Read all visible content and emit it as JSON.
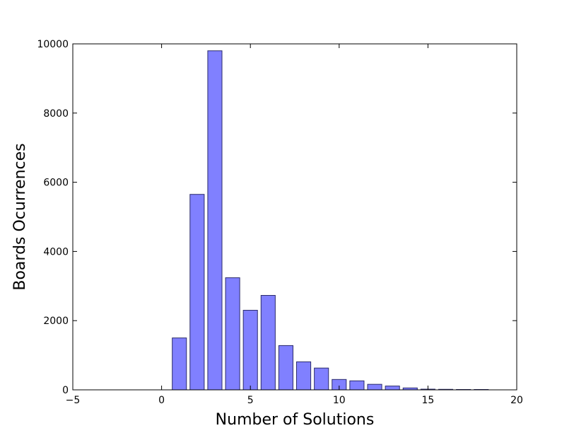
{
  "chart_data": {
    "type": "bar",
    "title": "",
    "xlabel": "Number of Solutions",
    "ylabel": "Boards Ocurrences",
    "xlim": [
      -5,
      20
    ],
    "ylim": [
      0,
      10000
    ],
    "xticks": [
      -5,
      0,
      5,
      10,
      15,
      20
    ],
    "yticks": [
      0,
      2000,
      4000,
      6000,
      8000,
      10000
    ],
    "xtick_labels": [
      "−5",
      "0",
      "5",
      "10",
      "15",
      "20"
    ],
    "ytick_labels": [
      "0",
      "2000",
      "4000",
      "6000",
      "8000",
      "10000"
    ],
    "bar_color": "#8080ff",
    "bar_edge_color": "#2b2b6b",
    "grid": false,
    "x": [
      1,
      2,
      3,
      4,
      5,
      6,
      7,
      8,
      9,
      10,
      11,
      12,
      13,
      14,
      15,
      16,
      17,
      18
    ],
    "values": [
      1500,
      5650,
      9800,
      3240,
      2300,
      2730,
      1280,
      810,
      630,
      300,
      260,
      160,
      110,
      55,
      20,
      15,
      10,
      10
    ]
  }
}
